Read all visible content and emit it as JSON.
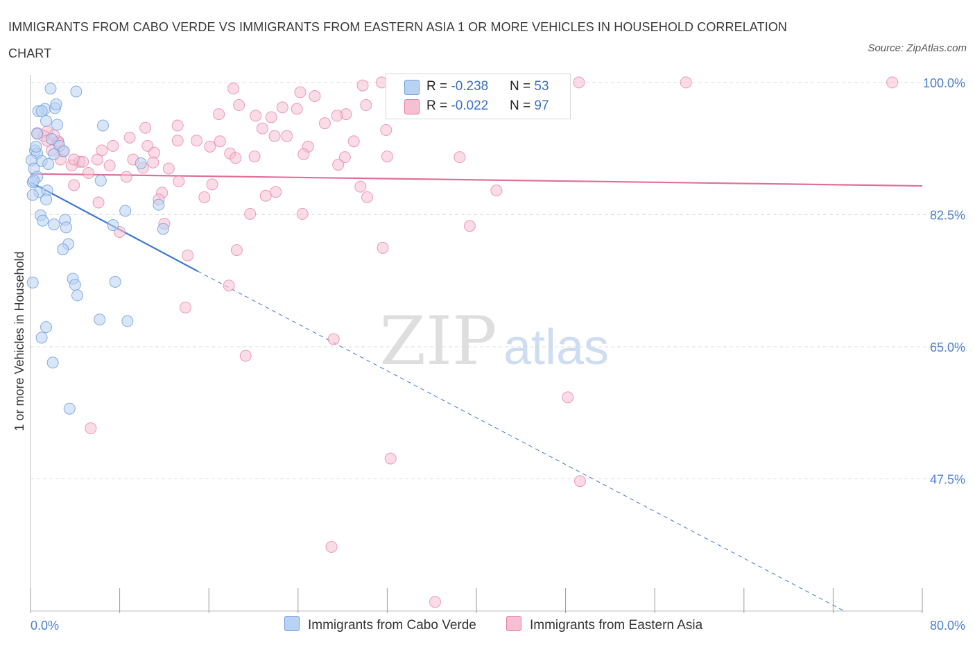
{
  "title": "IMMIGRANTS FROM CABO VERDE VS IMMIGRANTS FROM EASTERN ASIA 1 OR MORE VEHICLES IN HOUSEHOLD CORRELATION CHART",
  "source": "Source: ZipAtlas.com",
  "watermark": {
    "zip": "ZIP",
    "atlas": "atlas"
  },
  "colors": {
    "blue": "#6fa0e0",
    "blue_fill": "#b9d1f3",
    "pink": "#e57ea4",
    "pink_fill": "#f6bfd2",
    "blue_line": "#3b78d0",
    "pink_line": "#e0709a"
  },
  "legend": {
    "rows": [
      {
        "r_label": "R = ",
        "r_value": "-0.238",
        "n_label": "N = ",
        "n_value": "53"
      },
      {
        "r_label": "R = ",
        "r_value": "-0.022",
        "n_label": "N = ",
        "n_value": "97"
      }
    ]
  },
  "bottom_legend": {
    "series1": "Immigrants from Cabo Verde",
    "series2": "Immigrants from Eastern Asia"
  },
  "chart_data": {
    "type": "scatter",
    "title": "IMMIGRANTS FROM CABO VERDE VS IMMIGRANTS FROM EASTERN ASIA 1 OR MORE VEHICLES IN HOUSEHOLD CORRELATION CHART",
    "xlabel": "",
    "ylabel": "1 or more Vehicles in Household",
    "xlim": [
      0,
      80
    ],
    "ylim": [
      30,
      101
    ],
    "x_tick_labels": [
      "0.0%",
      "80.0%"
    ],
    "y_ticks": [
      47.5,
      65.0,
      82.5,
      100.0
    ],
    "y_tick_labels": [
      "47.5%",
      "65.0%",
      "82.5%",
      "100.0%"
    ],
    "grid": true,
    "series": [
      {
        "name": "Immigrants from Cabo Verde",
        "R": -0.238,
        "N": 53,
        "trend": {
          "x": [
            0,
            15
          ],
          "y": [
            86.8,
            75.0
          ],
          "dashed_to": [
            73,
            30
          ]
        },
        "points": [
          [
            1.8,
            99.2
          ],
          [
            4.1,
            98.8
          ],
          [
            1.3,
            96.5
          ],
          [
            0.7,
            96.2
          ],
          [
            1.0,
            96.2
          ],
          [
            2.2,
            96.6
          ],
          [
            2.3,
            97.1
          ],
          [
            6.5,
            94.3
          ],
          [
            1.4,
            94.9
          ],
          [
            2.4,
            94.4
          ],
          [
            0.6,
            93.2
          ],
          [
            1.9,
            92.5
          ],
          [
            2.6,
            91.6
          ],
          [
            0.4,
            91.0
          ],
          [
            3.0,
            90.9
          ],
          [
            0.6,
            90.6
          ],
          [
            1.0,
            89.6
          ],
          [
            0.1,
            89.7
          ],
          [
            0.3,
            88.6
          ],
          [
            0.6,
            87.5
          ],
          [
            0.2,
            86.8
          ],
          [
            6.3,
            87.0
          ],
          [
            9.9,
            89.3
          ],
          [
            0.8,
            85.5
          ],
          [
            1.5,
            85.7
          ],
          [
            0.2,
            85.1
          ],
          [
            1.4,
            84.5
          ],
          [
            8.5,
            83.0
          ],
          [
            0.9,
            82.4
          ],
          [
            1.1,
            81.7
          ],
          [
            3.1,
            81.8
          ],
          [
            2.1,
            81.2
          ],
          [
            3.2,
            80.8
          ],
          [
            7.4,
            81.1
          ],
          [
            11.9,
            80.6
          ],
          [
            11.5,
            83.8
          ],
          [
            3.4,
            78.6
          ],
          [
            2.9,
            77.9
          ],
          [
            3.8,
            74.0
          ],
          [
            4.0,
            73.2
          ],
          [
            7.6,
            73.6
          ],
          [
            0.2,
            73.5
          ],
          [
            4.2,
            71.8
          ],
          [
            6.2,
            68.6
          ],
          [
            8.7,
            68.4
          ],
          [
            1.4,
            67.6
          ],
          [
            1.0,
            66.2
          ],
          [
            2.0,
            62.9
          ],
          [
            3.5,
            56.8
          ],
          [
            0.5,
            91.5
          ],
          [
            0.3,
            87.0
          ],
          [
            2.1,
            90.5
          ],
          [
            1.6,
            89.2
          ]
        ]
      },
      {
        "name": "Immigrants from Eastern Asia",
        "R": -0.022,
        "N": 97,
        "trend": {
          "x": [
            0,
            80
          ],
          "y": [
            87.9,
            86.3
          ]
        },
        "points": [
          [
            18.2,
            99.2
          ],
          [
            20.2,
            95.6
          ],
          [
            22.6,
            96.7
          ],
          [
            25.5,
            98.2
          ],
          [
            24.2,
            98.7
          ],
          [
            29.8,
            99.6
          ],
          [
            31.5,
            100.0
          ],
          [
            35.1,
            100.0
          ],
          [
            39.6,
            100.0
          ],
          [
            49.2,
            100.0
          ],
          [
            58.8,
            100.0
          ],
          [
            77.3,
            100.0
          ],
          [
            30.1,
            97.0
          ],
          [
            18.7,
            97.0
          ],
          [
            23.9,
            96.5
          ],
          [
            28.3,
            95.8
          ],
          [
            16.9,
            95.8
          ],
          [
            21.6,
            95.4
          ],
          [
            27.5,
            95.6
          ],
          [
            26.4,
            94.6
          ],
          [
            20.8,
            93.9
          ],
          [
            13.2,
            94.3
          ],
          [
            10.3,
            94.0
          ],
          [
            31.9,
            93.7
          ],
          [
            21.9,
            92.9
          ],
          [
            23.0,
            92.9
          ],
          [
            8.9,
            92.7
          ],
          [
            14.9,
            92.3
          ],
          [
            17.0,
            92.2
          ],
          [
            13.2,
            92.3
          ],
          [
            29.0,
            92.2
          ],
          [
            2.5,
            92.2
          ],
          [
            1.5,
            93.5
          ],
          [
            7.4,
            91.6
          ],
          [
            10.5,
            91.6
          ],
          [
            16.1,
            91.5
          ],
          [
            24.9,
            91.5
          ],
          [
            6.4,
            91.0
          ],
          [
            2.9,
            90.9
          ],
          [
            11.1,
            90.7
          ],
          [
            17.9,
            90.6
          ],
          [
            18.4,
            90.0
          ],
          [
            20.1,
            90.2
          ],
          [
            24.5,
            90.5
          ],
          [
            28.2,
            90.1
          ],
          [
            32.0,
            90.2
          ],
          [
            38.5,
            90.1
          ],
          [
            2.7,
            89.8
          ],
          [
            6.0,
            89.8
          ],
          [
            9.2,
            89.8
          ],
          [
            11.0,
            89.4
          ],
          [
            7.1,
            89.0
          ],
          [
            4.4,
            89.5
          ],
          [
            3.7,
            89.0
          ],
          [
            12.4,
            88.6
          ],
          [
            27.6,
            89.1
          ],
          [
            10.1,
            88.7
          ],
          [
            5.2,
            88.0
          ],
          [
            8.6,
            87.5
          ],
          [
            13.3,
            86.9
          ],
          [
            16.3,
            86.5
          ],
          [
            3.9,
            86.4
          ],
          [
            22.0,
            85.5
          ],
          [
            29.6,
            86.2
          ],
          [
            11.8,
            85.4
          ],
          [
            41.8,
            85.7
          ],
          [
            15.6,
            84.8
          ],
          [
            21.1,
            85.0
          ],
          [
            30.2,
            84.8
          ],
          [
            11.5,
            84.5
          ],
          [
            6.1,
            84.1
          ],
          [
            19.7,
            82.6
          ],
          [
            24.4,
            82.6
          ],
          [
            12.0,
            81.3
          ],
          [
            39.4,
            81.0
          ],
          [
            8.0,
            80.2
          ],
          [
            18.5,
            77.8
          ],
          [
            14.1,
            77.1
          ],
          [
            31.6,
            78.1
          ],
          [
            17.8,
            73.1
          ],
          [
            13.9,
            70.2
          ],
          [
            27.2,
            66.0
          ],
          [
            19.3,
            63.8
          ],
          [
            48.2,
            58.3
          ],
          [
            5.4,
            54.2
          ],
          [
            32.3,
            50.2
          ],
          [
            49.3,
            47.2
          ],
          [
            27.0,
            38.5
          ],
          [
            36.3,
            31.2
          ],
          [
            2.5,
            92.0
          ],
          [
            3.9,
            89.8
          ],
          [
            1.2,
            92.9
          ],
          [
            1.5,
            92.3
          ],
          [
            0.6,
            93.3
          ],
          [
            2.1,
            93.0
          ],
          [
            1.9,
            91.0
          ],
          [
            4.7,
            89.5
          ]
        ]
      }
    ]
  }
}
